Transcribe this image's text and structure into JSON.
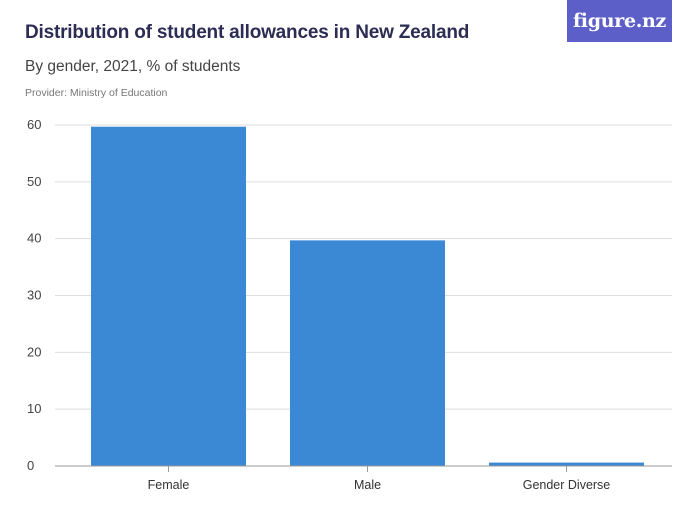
{
  "header": {
    "title": "Distribution of student allowances in New Zealand",
    "subtitle": "By gender, 2021, % of students",
    "provider": "Provider: Ministry of Education",
    "logo": "figure.nz"
  },
  "colors": {
    "bar": "#3b88d4",
    "grid": "#dddddd",
    "axis": "#999999",
    "brand": "#5b5fc7"
  },
  "chart_data": {
    "type": "bar",
    "categories": [
      "Female",
      "Male",
      "Gender Diverse"
    ],
    "values": [
      59.7,
      39.7,
      0.6
    ],
    "ylim": [
      0,
      60
    ],
    "yticks": [
      0,
      10,
      20,
      30,
      40,
      50,
      60
    ],
    "title": "Distribution of student allowances in New Zealand",
    "subtitle": "By gender, 2021, % of students",
    "grid": true
  }
}
